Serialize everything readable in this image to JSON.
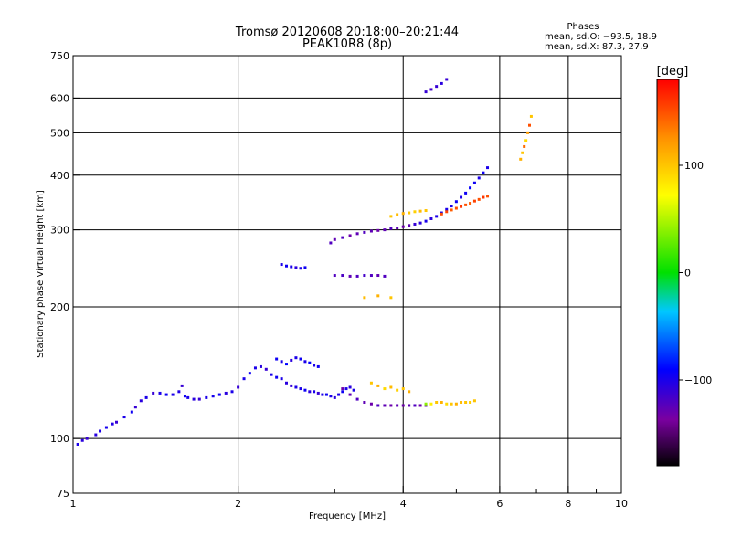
{
  "chart_data": {
    "type": "scatter",
    "title": "Tromsø 20120608 20:18:00–20:21:44",
    "subtitle": "PEAK10R8 (8p)",
    "xlabel": "Frequency [MHz]",
    "ylabel": "Stationary phase Virtual Height [km]",
    "xscale": "log",
    "yscale": "log",
    "xlim": [
      1,
      10
    ],
    "ylim": [
      75,
      750
    ],
    "grid": true,
    "x_ticks": [
      1,
      2,
      4,
      6,
      8,
      10
    ],
    "x_tick_labels": [
      "1",
      "2",
      "4",
      "6",
      "8",
      "10"
    ],
    "y_ticks": [
      75,
      100,
      200,
      300,
      400,
      500,
      600,
      750
    ],
    "y_tick_labels": [
      "75",
      "100",
      "200",
      "300",
      "400",
      "500",
      "600",
      "750"
    ],
    "phases_header": "Phases",
    "phase_stats": [
      "mean, sd,O: −93.5, 18.9",
      "mean, sd,X: 87.3, 27.9"
    ],
    "colorbar": {
      "label": "[deg]",
      "range": [
        -180,
        180
      ],
      "ticks": [
        100,
        0,
        -100
      ],
      "tick_labels": [
        "100",
        "0",
        "−100"
      ]
    },
    "series": [
      {
        "x": [
          1.02,
          1.04,
          1.06,
          1.1,
          1.12,
          1.15,
          1.18,
          1.2,
          1.24,
          1.28,
          1.3,
          1.33,
          1.36,
          1.4,
          1.44,
          1.48,
          1.52,
          1.56,
          1.58,
          1.6,
          1.62,
          1.66,
          1.7,
          1.75,
          1.8,
          1.85,
          1.9,
          1.95,
          2.0,
          2.05,
          2.1,
          2.15,
          2.2,
          2.25,
          2.3,
          2.35,
          2.4,
          2.45,
          2.5,
          2.55,
          2.6,
          2.65,
          2.7,
          2.75,
          2.8,
          2.85,
          2.9
        ],
        "y": [
          97,
          99,
          100,
          102,
          104,
          106,
          108,
          109,
          112,
          115,
          118,
          122,
          124,
          127,
          127,
          126,
          126,
          128,
          132,
          125,
          124,
          123,
          123,
          124,
          125,
          126,
          127,
          128,
          131,
          137,
          141,
          145,
          146,
          144,
          140,
          138,
          137,
          134,
          132,
          131,
          130,
          129,
          128,
          128,
          127,
          126,
          126
        ],
        "phase": [
          -100,
          -105,
          -110,
          -105,
          -100,
          -98,
          -102,
          -110,
          -100,
          -95,
          -110,
          -105,
          -100,
          -110,
          -100,
          -95,
          -100,
          -102,
          -110,
          -95,
          -100,
          -105,
          -110,
          -100,
          -98,
          -95,
          -105,
          -100,
          -110,
          -100,
          -95,
          -100,
          -105,
          -110,
          -100,
          -95,
          -100,
          -105,
          -110,
          -100,
          -100,
          -95,
          -105,
          -100,
          -110,
          -100,
          -95
        ]
      },
      {
        "x": [
          2.35,
          2.4,
          2.45,
          2.5,
          2.55,
          2.6,
          2.65,
          2.7,
          2.75,
          2.8
        ],
        "y": [
          152,
          150,
          148,
          151,
          153,
          152,
          150,
          149,
          147,
          146
        ],
        "phase": [
          -95,
          -100,
          -90,
          -105,
          -100,
          -95,
          -100,
          -90,
          -100,
          -95
        ]
      },
      {
        "x": [
          2.95,
          3.0,
          3.05,
          3.1,
          3.15,
          3.2,
          3.25
        ],
        "y": [
          125,
          124,
          126,
          128,
          130,
          131,
          129
        ],
        "phase": [
          -100,
          -105,
          -100,
          -95,
          -100,
          -105,
          -100
        ]
      },
      {
        "x": [
          3.1,
          3.2,
          3.3,
          3.4,
          3.5,
          3.6,
          3.7,
          3.8,
          3.9,
          4.0,
          4.1,
          4.2,
          4.3,
          4.4
        ],
        "y": [
          130,
          126,
          123,
          121,
          120,
          119,
          119,
          119,
          119,
          119,
          119,
          119,
          119,
          119
        ],
        "phase": [
          -130,
          -125,
          -120,
          -125,
          -130,
          -120,
          -125,
          -130,
          -125,
          -130,
          -125,
          -120,
          -130,
          -125
        ]
      },
      {
        "x": [
          4.4,
          4.5,
          4.6,
          4.7,
          4.8,
          4.9,
          5.0,
          5.1,
          5.2,
          5.3,
          5.4
        ],
        "y": [
          120,
          120,
          121,
          121,
          120,
          120,
          120,
          121,
          121,
          121,
          122
        ],
        "phase": [
          40,
          80,
          100,
          110,
          90,
          100,
          110,
          105,
          100,
          95,
          100
        ]
      },
      {
        "x": [
          3.5,
          3.6,
          3.7,
          3.8,
          3.9,
          4.0,
          4.1
        ],
        "y": [
          134,
          132,
          130,
          131,
          129,
          130,
          128
        ],
        "phase": [
          100,
          110,
          90,
          105,
          95,
          100,
          110
        ]
      },
      {
        "x": [
          2.95,
          3.0,
          3.1,
          3.2,
          3.3,
          3.4,
          3.5,
          3.6,
          3.7,
          3.8,
          3.9,
          4.0,
          4.1,
          4.2,
          4.3,
          4.4,
          4.5,
          4.6,
          4.7,
          4.8,
          4.9,
          5.0,
          5.1,
          5.2,
          5.3,
          5.4,
          5.5,
          5.6,
          5.7
        ],
        "y": [
          280,
          285,
          288,
          291,
          294,
          296,
          298,
          299,
          300,
          302,
          303,
          305,
          307,
          309,
          311,
          314,
          318,
          322,
          328,
          334,
          340,
          348,
          356,
          364,
          374,
          384,
          394,
          405,
          416
        ],
        "phase": [
          -120,
          -125,
          -120,
          -130,
          -125,
          -120,
          -125,
          -130,
          -125,
          -120,
          -125,
          -130,
          -125,
          -110,
          -105,
          -100,
          -105,
          -100,
          -95,
          -100,
          -98,
          -95,
          -100,
          -95,
          -92,
          -95,
          -100,
          -95,
          -100
        ]
      },
      {
        "x": [
          3.8,
          3.9,
          4.0,
          4.1,
          4.2,
          4.3,
          4.4
        ],
        "y": [
          322,
          325,
          327,
          328,
          330,
          331,
          332
        ],
        "phase": [
          100,
          105,
          110,
          100,
          95,
          105,
          100
        ]
      },
      {
        "x": [
          4.7,
          4.8,
          4.9,
          5.0,
          5.1,
          5.2,
          5.3,
          5.4,
          5.5,
          5.6,
          5.7
        ],
        "y": [
          326,
          330,
          333,
          336,
          339,
          342,
          345,
          349,
          352,
          356,
          358
        ],
        "phase": [
          150,
          155,
          145,
          150,
          160,
          150,
          145,
          155,
          150,
          160,
          150
        ]
      },
      {
        "x": [
          3.0,
          3.1,
          3.2,
          3.3,
          3.4,
          3.5,
          3.6,
          3.7
        ],
        "y": [
          236,
          236,
          235,
          235,
          236,
          236,
          236,
          235
        ],
        "phase": [
          -120,
          -118,
          -125,
          -120,
          -115,
          -120,
          -125,
          -120
        ]
      },
      {
        "x": [
          2.4,
          2.45,
          2.5,
          2.55,
          2.6,
          2.65
        ],
        "y": [
          250,
          248,
          247,
          246,
          245,
          246
        ],
        "phase": [
          -100,
          -95,
          -100,
          -105,
          -100,
          -95
        ]
      },
      {
        "x": [
          4.4,
          4.5,
          4.6,
          4.7,
          4.8
        ],
        "y": [
          620,
          628,
          638,
          648,
          662
        ],
        "phase": [
          -110,
          -115,
          -110,
          -105,
          -110
        ]
      },
      {
        "x": [
          6.55,
          6.6,
          6.65,
          6.7,
          6.75,
          6.8,
          6.85
        ],
        "y": [
          435,
          450,
          465,
          480,
          500,
          520,
          545
        ],
        "phase": [
          110,
          100,
          140,
          90,
          120,
          150,
          100
        ]
      },
      {
        "x": [
          3.4,
          3.6,
          3.8
        ],
        "y": [
          210,
          212,
          210
        ],
        "phase": [
          105,
          110,
          100
        ]
      }
    ]
  }
}
